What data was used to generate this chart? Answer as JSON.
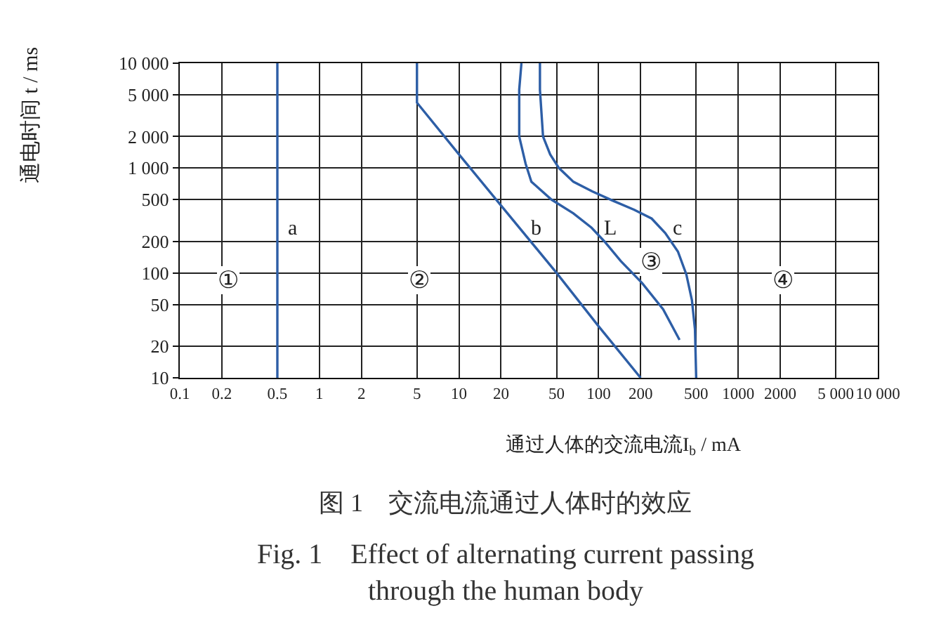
{
  "chart_data": {
    "type": "line",
    "log": "xy",
    "grid": true,
    "line_style": "solid",
    "title": "图 1　交流电流通过人体时的效应",
    "subtitle": "Fig. 1　Effect of alternating current passing through the human body",
    "xlabel": "通过人体的交流电流I$_{b}$ / mA",
    "ylabel": "通电时间 t / ms",
    "xlim": [
      0.1,
      10000
    ],
    "ylim": [
      10,
      10000
    ],
    "xticks": [
      0.1,
      0.2,
      0.5,
      1,
      2,
      5,
      10,
      20,
      50,
      100,
      200,
      500,
      1000,
      2000,
      {
        "value": 5000,
        "label": "5 000"
      },
      {
        "value": 10000,
        "label": "10 000"
      }
    ],
    "yticks": [
      10,
      20,
      50,
      100,
      200,
      500,
      {
        "value": 1000,
        "label": "1 000"
      },
      {
        "value": 2000,
        "label": "2 000"
      },
      {
        "value": 5000,
        "label": "5 000"
      },
      {
        "value": 10000,
        "label": "10 000"
      }
    ],
    "series": [
      {
        "name": "a",
        "x": [
          0.5,
          0.5
        ],
        "values": [
          10,
          10000
        ],
        "color": "#2d5ea6"
      },
      {
        "name": "b",
        "x": [
          5,
          5,
          10,
          20,
          50,
          100,
          200
        ],
        "values": [
          10000,
          4200,
          1350,
          440,
          100,
          31,
          10
        ],
        "color": "#2d5ea6"
      },
      {
        "name": "L",
        "x": [
          28,
          27,
          27,
          30,
          33,
          46,
          66,
          89,
          110,
          144,
          205,
          290,
          380
        ],
        "values": [
          10000,
          5600,
          2000,
          1100,
          740,
          500,
          370,
          270,
          200,
          130,
          80,
          45,
          23
        ],
        "color": "#2d5ea6"
      },
      {
        "name": "c",
        "x": [
          38,
          38,
          40,
          45,
          52,
          66,
          90,
          126,
          180,
          240,
          300,
          370,
          425,
          466,
          490,
          500
        ],
        "values": [
          10000,
          5600,
          2000,
          1350,
          1000,
          740,
          600,
          490,
          400,
          330,
          240,
          160,
          97,
          55,
          29,
          10
        ],
        "color": "#2d5ea6"
      }
    ],
    "annotations": [
      "①",
      "②",
      {
        "text": "③",
        "x": 188,
        "y": 90
      },
      "④"
    ]
  }
}
